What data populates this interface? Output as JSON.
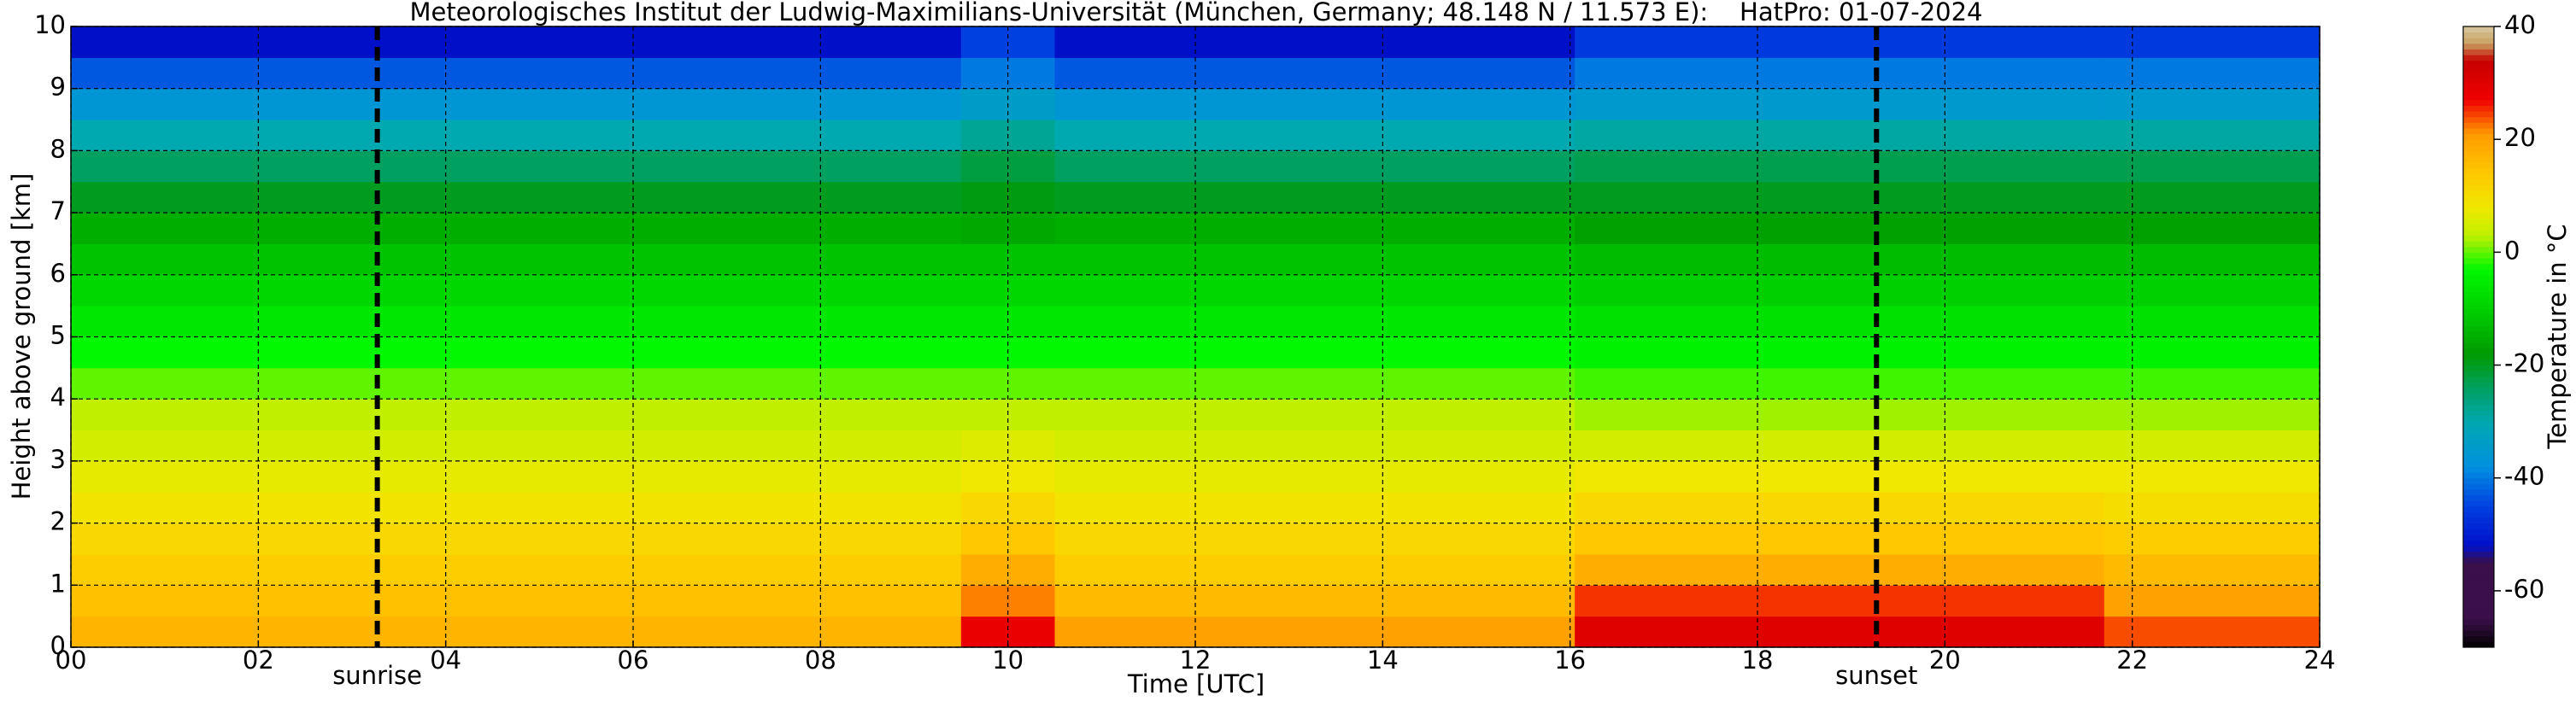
{
  "chart_data": {
    "type": "heatmap",
    "title": "Meteorologisches Institut der Ludwig-Maximilians-Universität (München, Germany; 48.148 N / 11.573 E):    HatPro: 01-07-2024",
    "x_label": "Time [UTC]",
    "y_label": "Height above ground [km]",
    "colorbar_label": "Temperature in °C",
    "x_edges": [
      0,
      9.5,
      10.5,
      16.05,
      21.7,
      24
    ],
    "y_edges": [
      0,
      0.5,
      1,
      1.5,
      2,
      2.5,
      3,
      3.5,
      4,
      4.5,
      5,
      5.5,
      6,
      6.5,
      7,
      7.5,
      8,
      8.5,
      9,
      9.5,
      10
    ],
    "z": [
      [
        17,
        15,
        13,
        11,
        9,
        7,
        5,
        3,
        0,
        -3,
        -6,
        -9,
        -12,
        -15,
        -20,
        -24,
        -30,
        -36,
        -43,
        -52
      ],
      [
        28,
        22,
        18,
        14,
        11,
        8,
        6,
        3,
        0,
        -3,
        -6,
        -9,
        -12,
        -16,
        -19,
        -22,
        -28,
        -34,
        -40,
        -45
      ],
      [
        20,
        16,
        13,
        11,
        9,
        7,
        5,
        3,
        0,
        -3,
        -6,
        -9,
        -12,
        -15,
        -20,
        -24,
        -30,
        -36,
        -43,
        -52
      ],
      [
        30,
        25,
        18,
        14,
        11,
        8,
        5,
        2,
        -1,
        -4,
        -7,
        -10,
        -13,
        -17,
        -20,
        -23,
        -29,
        -35,
        -40,
        -46
      ],
      [
        24,
        20,
        16,
        13,
        10,
        8,
        5,
        2,
        -1,
        -4,
        -7,
        -10,
        -13,
        -17,
        -20,
        -23,
        -29,
        -35,
        -40,
        -46
      ]
    ],
    "xlim": [
      0,
      24
    ],
    "ylim": [
      0,
      10
    ],
    "zlim": [
      -70,
      40
    ],
    "xticks": [
      {
        "value": 0,
        "label": "00"
      },
      {
        "value": 2,
        "label": "02"
      },
      {
        "value": 4,
        "label": "04"
      },
      {
        "value": 6,
        "label": "06"
      },
      {
        "value": 8,
        "label": "08"
      },
      10,
      12,
      14,
      16,
      18,
      20,
      22,
      24
    ],
    "yticks": [
      0,
      1,
      2,
      3,
      4,
      5,
      6,
      7,
      8,
      9,
      10
    ],
    "zticks": [
      40,
      20,
      0,
      -20,
      -40,
      -60
    ],
    "colorscale": [
      [
        -70,
        "#000000"
      ],
      [
        -65,
        "#3a0f4a"
      ],
      [
        -55,
        "#3a0f4a"
      ],
      [
        -52,
        "#0010c8"
      ],
      [
        -45,
        "#0040e0"
      ],
      [
        -38,
        "#0090e0"
      ],
      [
        -30,
        "#00a8b0"
      ],
      [
        -24,
        "#00a060"
      ],
      [
        -18,
        "#009a00"
      ],
      [
        -10,
        "#00d000"
      ],
      [
        -3,
        "#00f800"
      ],
      [
        3,
        "#c0f000"
      ],
      [
        8,
        "#f0e800"
      ],
      [
        14,
        "#ffc800"
      ],
      [
        21,
        "#ff9a00"
      ],
      [
        27,
        "#f00000"
      ],
      [
        34,
        "#c80000"
      ],
      [
        37,
        "#c8a060"
      ],
      [
        40,
        "#d8c8a0"
      ]
    ],
    "grid": true,
    "events": [
      {
        "label": "sunrise",
        "x": 3.27
      },
      {
        "label": "sunset",
        "x": 19.27
      }
    ]
  }
}
